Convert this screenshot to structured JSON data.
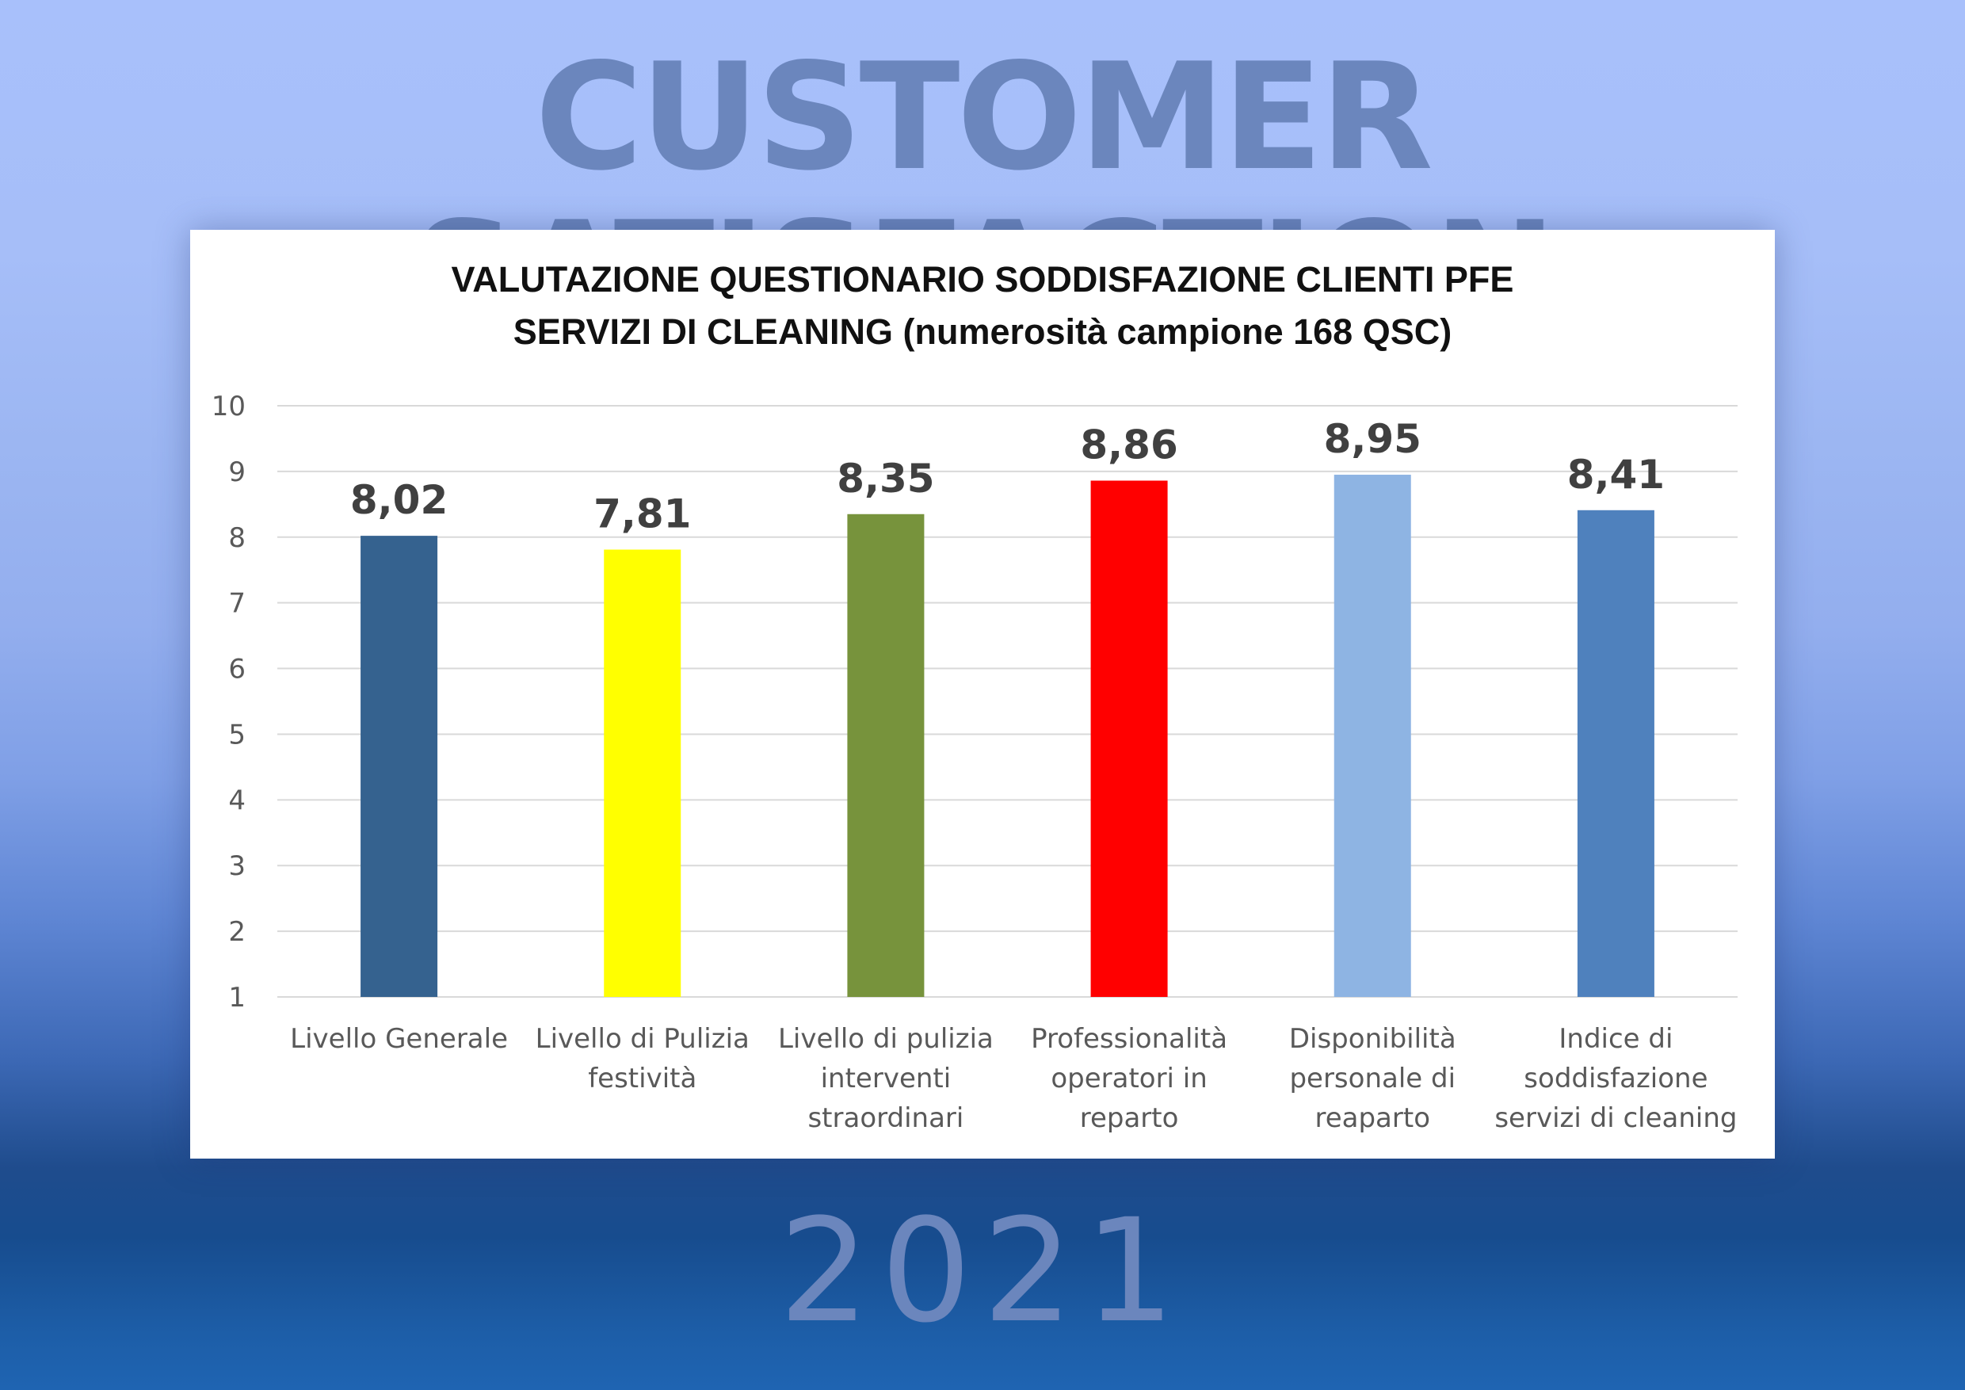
{
  "header": {
    "title": "CUSTOMER SATISFACTION"
  },
  "footer": {
    "year": "2021"
  },
  "chart_data": {
    "type": "bar",
    "title_lines": [
      "VALUTAZIONE  QUESTIONARIO  SODDISFAZIONE  CLIENTI PFE",
      "SERVIZI DI CLEANING (numerosità campione 168 QSC)"
    ],
    "categories": [
      [
        "Livello Generale"
      ],
      [
        "Livello di Pulizia",
        "festività"
      ],
      [
        "Livello di pulizia",
        "interventi",
        "straordinari"
      ],
      [
        "Professionalità",
        "operatori in",
        "reparto"
      ],
      [
        "Disponibilità",
        "personale di",
        "reaparto"
      ],
      [
        "Indice di",
        "soddisfazione",
        "servizi di cleaning"
      ]
    ],
    "values": [
      8.02,
      7.81,
      8.35,
      8.86,
      8.95,
      8.41
    ],
    "value_labels": [
      "8,02",
      "7,81",
      "8,35",
      "8,86",
      "8,95",
      "8,41"
    ],
    "colors": [
      "#35628f",
      "#ffff00",
      "#77933c",
      "#ff0000",
      "#8eb4e3",
      "#4f81bd"
    ],
    "ylim": [
      1,
      10
    ],
    "yticks": [
      "1",
      "2",
      "3",
      "4",
      "5",
      "6",
      "7",
      "8",
      "9",
      "10"
    ],
    "grid": true,
    "legend": "none"
  }
}
